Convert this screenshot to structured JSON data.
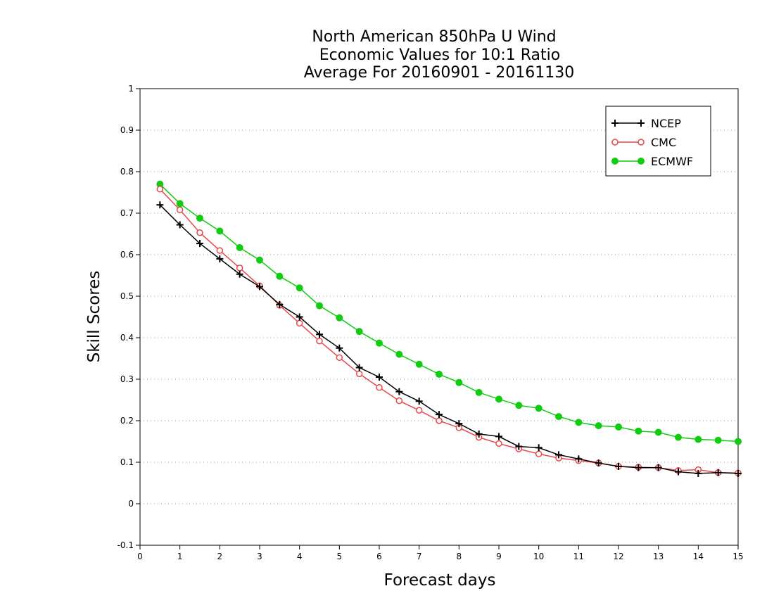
{
  "chart_data": {
    "type": "line",
    "title": [
      "North American 850hPa U Wind",
      "Economic Values for 10:1 Ratio",
      "Average For 20160901 - 20161130"
    ],
    "xlabel": "Forecast days",
    "ylabel": "Skill Scores",
    "xlim": [
      0,
      15
    ],
    "ylim": [
      -0.1,
      1
    ],
    "xticks": [
      "0",
      "1",
      "2",
      "3",
      "4",
      "5",
      "6",
      "7",
      "8",
      "9",
      "10",
      "11",
      "12",
      "13",
      "14",
      "15"
    ],
    "yticks": [
      "-0.1",
      "0",
      "0.1",
      "0.2",
      "0.3",
      "0.4",
      "0.5",
      "0.6",
      "0.7",
      "0.8",
      "0.9",
      "1"
    ],
    "grid": "horizontal dotted",
    "legend_position": "top-right",
    "x": [
      0.5,
      1,
      1.5,
      2,
      2.5,
      3,
      3.5,
      4,
      4.5,
      5,
      5.5,
      6,
      6.5,
      7,
      7.5,
      8,
      8.5,
      9,
      9.5,
      10,
      10.5,
      11,
      11.5,
      12,
      12.5,
      13,
      13.5,
      14,
      14.5,
      15
    ],
    "series": [
      {
        "name": "NCEP",
        "color": "#000000",
        "marker": "plus",
        "values": [
          0.72,
          0.672,
          0.627,
          0.59,
          0.553,
          0.523,
          0.48,
          0.45,
          0.408,
          0.375,
          0.328,
          0.305,
          0.27,
          0.247,
          0.215,
          0.193,
          0.168,
          0.162,
          0.138,
          0.135,
          0.118,
          0.108,
          0.098,
          0.09,
          0.087,
          0.087,
          0.077,
          0.073,
          0.075,
          0.073
        ]
      },
      {
        "name": "CMC",
        "color": "#e8474b",
        "marker": "open-circle",
        "values": [
          0.758,
          0.708,
          0.653,
          0.61,
          0.568,
          0.525,
          0.478,
          0.435,
          0.392,
          0.352,
          0.313,
          0.28,
          0.248,
          0.225,
          0.2,
          0.183,
          0.16,
          0.145,
          0.132,
          0.12,
          0.11,
          0.104,
          0.098,
          0.09,
          0.088,
          0.087,
          0.08,
          0.082,
          0.075,
          0.074
        ]
      },
      {
        "name": "ECMWF",
        "color": "#11cc11",
        "marker": "filled-circle",
        "values": [
          0.77,
          0.723,
          0.688,
          0.657,
          0.617,
          0.587,
          0.548,
          0.52,
          0.477,
          0.448,
          0.415,
          0.387,
          0.36,
          0.336,
          0.312,
          0.292,
          0.268,
          0.252,
          0.237,
          0.23,
          0.21,
          0.196,
          0.188,
          0.185,
          0.175,
          0.172,
          0.16,
          0.155,
          0.153,
          0.15
        ]
      }
    ]
  }
}
